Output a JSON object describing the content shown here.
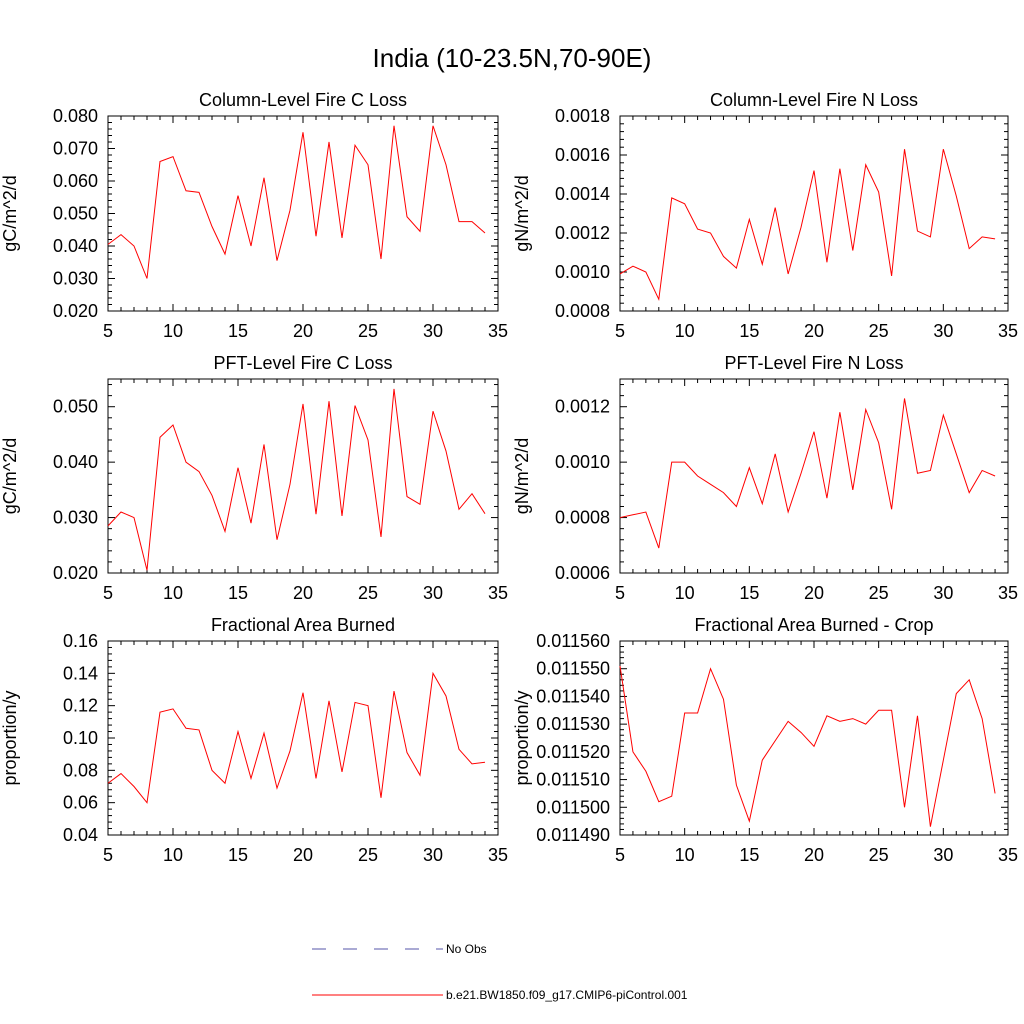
{
  "figure": {
    "title": "India (10-23.5N,70-90E)"
  },
  "legend": {
    "entries": [
      {
        "label": "No Obs",
        "color": "#5555aa",
        "style": "dashed"
      },
      {
        "label": "b.e21.BW1850.f09_g17.CMIP6-piControl.001",
        "color": "#ff0000",
        "style": "solid"
      }
    ]
  },
  "chart_data": [
    {
      "type": "line",
      "title": "Column-Level Fire C Loss",
      "ylabel": "gC/m^2/d",
      "xlabel": "",
      "xlim": [
        5,
        35
      ],
      "ylim": [
        0.02,
        0.08
      ],
      "xticks": [
        "5",
        "10",
        "15",
        "20",
        "25",
        "30",
        "35"
      ],
      "yticks": [
        "0.020",
        "0.030",
        "0.040",
        "0.050",
        "0.060",
        "0.070",
        "0.080"
      ],
      "series": [
        {
          "name": "b.e21.BW1850.f09_g17.CMIP6-piControl.001",
          "color": "#ff0000",
          "x": [
            5,
            6,
            7,
            8,
            9,
            10,
            11,
            12,
            13,
            14,
            15,
            16,
            17,
            18,
            19,
            20,
            21,
            22,
            23,
            24,
            25,
            26,
            27,
            28,
            29,
            30,
            31,
            32,
            33,
            34
          ],
          "values": [
            0.0405,
            0.0435,
            0.04,
            0.03,
            0.066,
            0.0675,
            0.057,
            0.0565,
            0.046,
            0.0375,
            0.0555,
            0.04,
            0.061,
            0.0355,
            0.051,
            0.075,
            0.043,
            0.072,
            0.0425,
            0.071,
            0.065,
            0.036,
            0.077,
            0.049,
            0.0445,
            0.077,
            0.065,
            0.0475,
            0.0475,
            0.044
          ]
        }
      ]
    },
    {
      "type": "line",
      "title": "Column-Level Fire N Loss",
      "ylabel": "gN/m^2/d",
      "xlabel": "",
      "xlim": [
        5,
        35
      ],
      "ylim": [
        0.0008,
        0.0018
      ],
      "xticks": [
        "5",
        "10",
        "15",
        "20",
        "25",
        "30",
        "35"
      ],
      "yticks": [
        "0.0008",
        "0.0010",
        "0.0012",
        "0.0014",
        "0.0016",
        "0.0018"
      ],
      "series": [
        {
          "name": "b.e21.BW1850.f09_g17.CMIP6-piControl.001",
          "color": "#ff0000",
          "x": [
            5,
            6,
            7,
            8,
            9,
            10,
            11,
            12,
            13,
            14,
            15,
            16,
            17,
            18,
            19,
            20,
            21,
            22,
            23,
            24,
            25,
            26,
            27,
            28,
            29,
            30,
            31,
            32,
            33,
            34
          ],
          "values": [
            0.00099,
            0.00103,
            0.001,
            0.00086,
            0.00138,
            0.00135,
            0.00122,
            0.0012,
            0.00108,
            0.00102,
            0.00127,
            0.00104,
            0.00133,
            0.00099,
            0.00123,
            0.00152,
            0.00105,
            0.00153,
            0.00111,
            0.00155,
            0.00141,
            0.00098,
            0.00163,
            0.00121,
            0.00118,
            0.00163,
            0.00139,
            0.00112,
            0.00118,
            0.00117
          ]
        }
      ]
    },
    {
      "type": "line",
      "title": "PFT-Level Fire C Loss",
      "ylabel": "gC/m^2/d",
      "xlabel": "",
      "xlim": [
        5,
        35
      ],
      "ylim": [
        0.02,
        0.055
      ],
      "xticks": [
        "5",
        "10",
        "15",
        "20",
        "25",
        "30",
        "35"
      ],
      "yticks": [
        "0.020",
        "0.030",
        "0.040",
        "0.050"
      ],
      "series": [
        {
          "name": "b.e21.BW1850.f09_g17.CMIP6-piControl.001",
          "color": "#ff0000",
          "x": [
            5,
            6,
            7,
            8,
            9,
            10,
            11,
            12,
            13,
            14,
            15,
            16,
            17,
            18,
            19,
            20,
            21,
            22,
            23,
            24,
            25,
            26,
            27,
            28,
            29,
            30,
            31,
            32,
            33,
            34
          ],
          "values": [
            0.0285,
            0.031,
            0.03,
            0.0205,
            0.0445,
            0.0467,
            0.04,
            0.0383,
            0.034,
            0.0275,
            0.039,
            0.029,
            0.0432,
            0.026,
            0.036,
            0.0505,
            0.0306,
            0.051,
            0.0303,
            0.0502,
            0.044,
            0.0265,
            0.0532,
            0.0338,
            0.0324,
            0.0492,
            0.042,
            0.0315,
            0.0343,
            0.0307
          ]
        }
      ]
    },
    {
      "type": "line",
      "title": "PFT-Level Fire N Loss",
      "ylabel": "gN/m^2/d",
      "xlabel": "",
      "xlim": [
        5,
        35
      ],
      "ylim": [
        0.0006,
        0.0013
      ],
      "xticks": [
        "5",
        "10",
        "15",
        "20",
        "25",
        "30",
        "35"
      ],
      "yticks": [
        "0.0006",
        "0.0008",
        "0.0010",
        "0.0012"
      ],
      "series": [
        {
          "name": "b.e21.BW1850.f09_g17.CMIP6-piControl.001",
          "color": "#ff0000",
          "x": [
            5,
            6,
            7,
            8,
            9,
            10,
            11,
            12,
            13,
            14,
            15,
            16,
            17,
            18,
            19,
            20,
            21,
            22,
            23,
            24,
            25,
            26,
            27,
            28,
            29,
            30,
            31,
            32,
            33,
            34
          ],
          "values": [
            0.0008,
            0.00081,
            0.00082,
            0.00069,
            0.001,
            0.001,
            0.00095,
            0.00092,
            0.00089,
            0.00084,
            0.00098,
            0.00085,
            0.00103,
            0.00082,
            0.00096,
            0.00111,
            0.00087,
            0.00118,
            0.0009,
            0.00119,
            0.00107,
            0.00083,
            0.00123,
            0.00096,
            0.00097,
            0.00117,
            0.00103,
            0.00089,
            0.00097,
            0.00095
          ]
        }
      ]
    },
    {
      "type": "line",
      "title": "Fractional Area Burned",
      "ylabel": "proportion/y",
      "xlabel": "",
      "xlim": [
        5,
        35
      ],
      "ylim": [
        0.04,
        0.16
      ],
      "xticks": [
        "5",
        "10",
        "15",
        "20",
        "25",
        "30",
        "35"
      ],
      "yticks": [
        "0.04",
        "0.06",
        "0.08",
        "0.10",
        "0.12",
        "0.14",
        "0.16"
      ],
      "series": [
        {
          "name": "b.e21.BW1850.f09_g17.CMIP6-piControl.001",
          "color": "#ff0000",
          "x": [
            5,
            6,
            7,
            8,
            9,
            10,
            11,
            12,
            13,
            14,
            15,
            16,
            17,
            18,
            19,
            20,
            21,
            22,
            23,
            24,
            25,
            26,
            27,
            28,
            29,
            30,
            31,
            32,
            33,
            34
          ],
          "values": [
            0.072,
            0.078,
            0.07,
            0.06,
            0.116,
            0.118,
            0.106,
            0.105,
            0.08,
            0.072,
            0.104,
            0.075,
            0.103,
            0.069,
            0.092,
            0.128,
            0.075,
            0.123,
            0.079,
            0.122,
            0.12,
            0.063,
            0.129,
            0.091,
            0.077,
            0.14,
            0.126,
            0.093,
            0.084,
            0.085
          ]
        }
      ]
    },
    {
      "type": "line",
      "title": "Fractional Area Burned - Crop",
      "ylabel": "proportion/y",
      "xlabel": "",
      "xlim": [
        5,
        35
      ],
      "ylim": [
        0.01149,
        0.01156
      ],
      "xticks": [
        "5",
        "10",
        "15",
        "20",
        "25",
        "30",
        "35"
      ],
      "yticks": [
        "0.011490",
        "0.011500",
        "0.011510",
        "0.011520",
        "0.011530",
        "0.011540",
        "0.011550",
        "0.011560"
      ],
      "series": [
        {
          "name": "b.e21.BW1850.f09_g17.CMIP6-piControl.001",
          "color": "#ff0000",
          "x": [
            5,
            6,
            7,
            8,
            9,
            10,
            11,
            12,
            13,
            14,
            15,
            16,
            17,
            18,
            19,
            20,
            21,
            22,
            23,
            24,
            25,
            26,
            27,
            28,
            29,
            30,
            31,
            32,
            33,
            34
          ],
          "values": [
            0.011551,
            0.01152,
            0.011513,
            0.011502,
            0.011504,
            0.011534,
            0.011534,
            0.01155,
            0.011539,
            0.011508,
            0.011495,
            0.011517,
            0.011524,
            0.011531,
            0.011527,
            0.011522,
            0.011533,
            0.011531,
            0.011532,
            0.01153,
            0.011535,
            0.011535,
            0.0115,
            0.011533,
            0.011493,
            0.011517,
            0.011541,
            0.011546,
            0.011532,
            0.011505
          ]
        }
      ]
    }
  ]
}
